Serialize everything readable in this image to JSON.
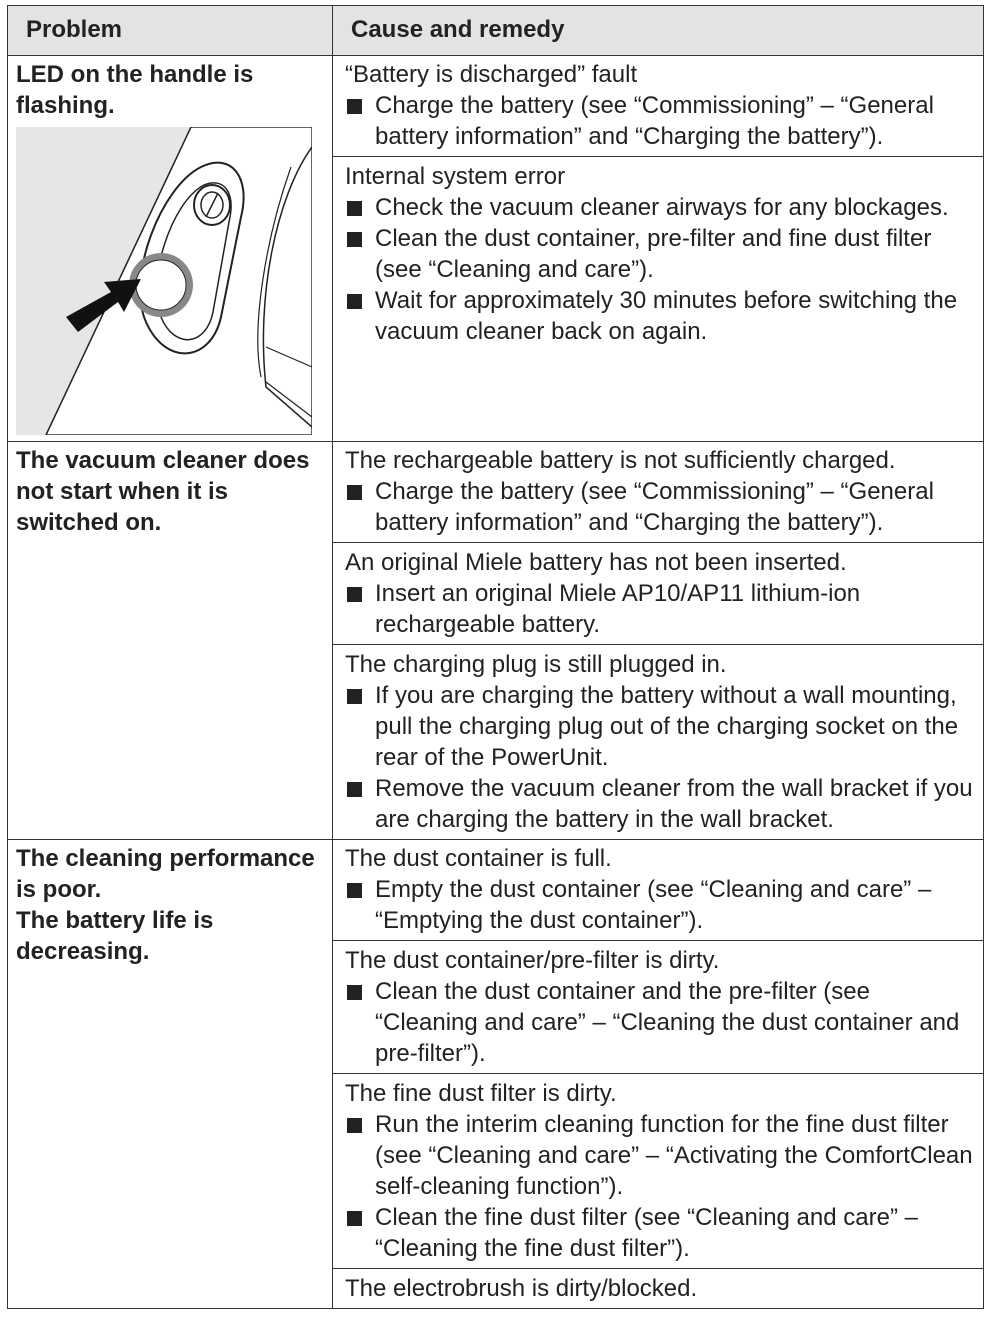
{
  "header": {
    "problem": "Problem",
    "cause": "Cause and remedy"
  },
  "rows": [
    {
      "problem": [
        "LED on the handle is flashing."
      ],
      "causes": [
        {
          "title": "“Battery is discharged” fault",
          "remedies": [
            "Charge the battery (see “Commissioning” – “General battery information” and “Charging the battery”)."
          ]
        },
        {
          "title": "Internal system error",
          "remedies": [
            "Check the vacuum cleaner airways for any blockages.",
            "Clean the dust container, pre-filter and fine dust filter (see “Cleaning and care”).",
            "Wait for approximately 30 minutes before switching the vacuum cleaner back on again."
          ]
        }
      ]
    },
    {
      "problem": [
        "The vacuum cleaner does not start when it is switched on."
      ],
      "causes": [
        {
          "title": "The rechargeable battery is not sufficiently charged.",
          "remedies": [
            "Charge the battery (see “Commissioning” – “General battery information” and “Charging the battery”)."
          ]
        },
        {
          "title": "An original Miele battery has not been inserted.",
          "remedies": [
            "Insert an original Miele AP10/AP11 lithium-ion rechargeable battery."
          ]
        },
        {
          "title": "The charging plug is still plugged in.",
          "remedies": [
            "If you are charging the battery without a wall mounting, pull the charging plug out of the charging socket on the rear of the PowerUnit.",
            "Remove the vacuum cleaner from the wall bracket if you are charging the battery in the wall bracket."
          ]
        }
      ]
    },
    {
      "problem": [
        "The cleaning performance is poor.",
        "The battery life is decreasing."
      ],
      "causes": [
        {
          "title": "The dust container is full.",
          "remedies": [
            "Empty the dust container (see “Cleaning and care” – “Emptying the dust container”)."
          ]
        },
        {
          "title": "The dust container/pre-filter is dirty.",
          "remedies": [
            "Clean the dust container and the pre-filter (see “Cleaning and care” – “Cleaning the dust container and pre-filter”)."
          ]
        },
        {
          "title": "The fine dust filter is dirty.",
          "remedies": [
            "Run the interim cleaning function for the fine dust filter (see “Cleaning and care” – “Activating the ComfortClean self-cleaning function”).",
            "Clean the fine dust filter (see “Cleaning and care” – “Cleaning the fine dust filter”)."
          ]
        },
        {
          "title": "The electrobrush is dirty/blocked."
        }
      ]
    }
  ]
}
